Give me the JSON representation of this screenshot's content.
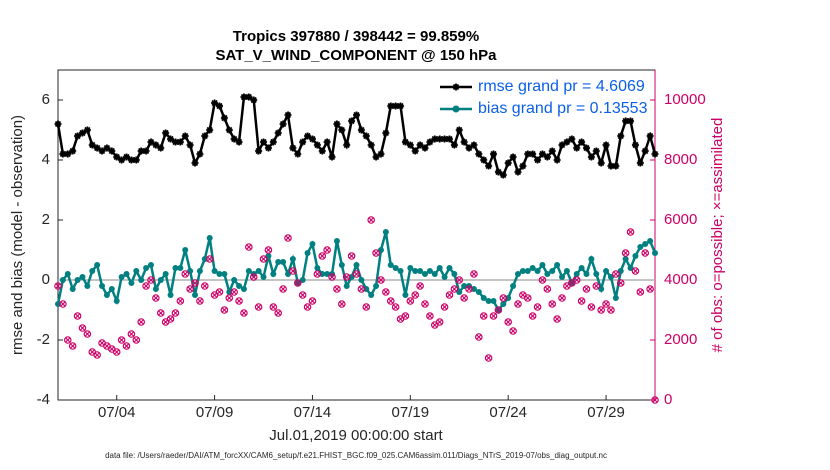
{
  "chart_data": {
    "type": "line",
    "title": [
      "Tropics 397880 / 398442 = 99.859%",
      "SAT_V_WIND_COMPONENT @ 150 hPa"
    ],
    "xlabel": "Jul.01,2019 00:00:00 start",
    "ylabel": "rmse and bias (model - observation)",
    "y2label": "# of obs: o=possible; ×=assimilated",
    "footer": "data file: /Users/raeder/DAI/ATM_forcXX/CAM6_setup/f.e21.FHIST_BGC.f09_025.CAM6assim.011/Diags_NTrS_2019-07/obs_diag_output.nc",
    "legend": "upper right",
    "xlim": [
      0,
      30.5
    ],
    "xticks": [
      {
        "value": 3,
        "label": "07/04"
      },
      {
        "value": 8,
        "label": "07/09"
      },
      {
        "value": 13,
        "label": "07/14"
      },
      {
        "value": 18,
        "label": "07/19"
      },
      {
        "value": 23,
        "label": "07/24"
      },
      {
        "value": 28,
        "label": "07/29"
      }
    ],
    "ylim": [
      -4,
      7
    ],
    "yticks": [
      -4,
      -2,
      0,
      2,
      4,
      6
    ],
    "y2lim": [
      0,
      11000
    ],
    "y2ticks": [
      0,
      2000,
      4000,
      6000,
      8000,
      10000
    ],
    "x": [
      0,
      0.25,
      0.5,
      0.75,
      1,
      1.25,
      1.5,
      1.75,
      2,
      2.25,
      2.5,
      2.75,
      3,
      3.25,
      3.5,
      3.75,
      4,
      4.25,
      4.5,
      4.75,
      5,
      5.25,
      5.5,
      5.75,
      6,
      6.25,
      6.5,
      6.75,
      7,
      7.25,
      7.5,
      7.75,
      8,
      8.25,
      8.5,
      8.75,
      9,
      9.25,
      9.5,
      9.75,
      10,
      10.25,
      10.5,
      10.75,
      11,
      11.25,
      11.5,
      11.75,
      12,
      12.25,
      12.5,
      12.75,
      13,
      13.25,
      13.5,
      13.75,
      14,
      14.25,
      14.5,
      14.75,
      15,
      15.25,
      15.5,
      15.75,
      16,
      16.25,
      16.5,
      16.75,
      17,
      17.25,
      17.5,
      17.75,
      18,
      18.25,
      18.5,
      18.75,
      19,
      19.25,
      19.5,
      19.75,
      20,
      20.25,
      20.5,
      20.75,
      21,
      21.25,
      21.5,
      21.75,
      22,
      22.25,
      22.5,
      22.75,
      23,
      23.25,
      23.5,
      23.75,
      24,
      24.25,
      24.5,
      24.75,
      25,
      25.25,
      25.5,
      25.75,
      26,
      26.25,
      26.5,
      26.75,
      27,
      27.25,
      27.5,
      27.75,
      28,
      28.25,
      28.5,
      28.75,
      29,
      29.25,
      29.5,
      29.75,
      30,
      30.25,
      30.5
    ],
    "series": [
      {
        "name": "rmse grand pr = 4.6069",
        "color": "#000000",
        "marker": "star",
        "values": [
          5.2,
          4.2,
          4.2,
          4.3,
          4.8,
          4.9,
          5.0,
          4.5,
          4.4,
          4.3,
          4.4,
          4.3,
          4.1,
          4.0,
          4.1,
          4.0,
          4.0,
          4.3,
          4.3,
          4.6,
          4.5,
          4.4,
          4.9,
          4.7,
          4.6,
          4.6,
          4.8,
          4.5,
          3.9,
          4.2,
          4.8,
          5.0,
          5.9,
          5.8,
          5.4,
          5.0,
          4.7,
          4.6,
          6.1,
          6.1,
          6.0,
          4.3,
          4.6,
          4.4,
          4.6,
          4.9,
          5.2,
          5.5,
          4.4,
          4.2,
          4.6,
          4.8,
          4.7,
          4.5,
          4.3,
          4.6,
          4.1,
          5.2,
          5.0,
          4.5,
          5.3,
          5.5,
          5.0,
          4.8,
          4.5,
          4.1,
          4.2,
          4.9,
          5.8,
          5.8,
          5.8,
          4.6,
          4.5,
          4.3,
          4.5,
          4.4,
          4.6,
          4.7,
          4.7,
          4.7,
          4.7,
          4.5,
          5.0,
          4.6,
          4.4,
          4.5,
          4.2,
          4.0,
          3.8,
          4.2,
          3.6,
          3.5,
          3.9,
          4.1,
          3.6,
          3.8,
          4.2,
          4.2,
          4.0,
          4.2,
          4.1,
          4.3,
          4.0,
          4.5,
          4.6,
          4.7,
          4.4,
          4.6,
          4.4,
          4.1,
          4.3,
          3.9,
          4.5,
          3.8,
          3.8,
          4.8,
          5.3,
          5.3,
          4.5,
          3.9,
          4.3,
          4.8,
          4.2
        ]
      },
      {
        "name": "bias grand pr = 0.13553",
        "color": "#008080",
        "marker": "circle",
        "values": [
          -0.8,
          0.0,
          0.2,
          -0.3,
          0.0,
          0.1,
          -0.2,
          0.3,
          0.5,
          -0.2,
          -0.5,
          -0.3,
          -0.7,
          0.1,
          0.2,
          -0.1,
          0.3,
          0.0,
          0.4,
          0.5,
          -0.3,
          0.0,
          0.2,
          -0.5,
          0.4,
          0.4,
          1.0,
          0.3,
          -0.5,
          0.3,
          0.7,
          1.4,
          0.3,
          0.2,
          0.2,
          -0.4,
          0.0,
          -0.2,
          -0.3,
          0.3,
          0.2,
          0.3,
          0.1,
          0.8,
          0.2,
          0.6,
          0.6,
          0.2,
          0.7,
          -0.1,
          0.0,
          0.9,
          1.2,
          0.4,
          0.2,
          0.2,
          0.2,
          1.3,
          0.5,
          -0.2,
          0.1,
          0.5,
          0.0,
          -0.3,
          -0.5,
          -0.2,
          1.0,
          1.6,
          0.5,
          0.4,
          0.3,
          -0.5,
          0.4,
          0.3,
          0.3,
          0.2,
          0.3,
          0.2,
          0.4,
          0.1,
          0.4,
          0.2,
          -0.4,
          -0.2,
          -0.2,
          -0.3,
          -0.4,
          -0.6,
          -0.7,
          -0.7,
          -1.0,
          -0.8,
          -0.6,
          -0.2,
          0.2,
          0.3,
          0.3,
          0.4,
          0.3,
          0.5,
          0.2,
          0.3,
          0.5,
          0.1,
          0.3,
          -0.1,
          0.2,
          0.4,
          0.2,
          0.7,
          0.2,
          -0.3,
          0.3,
          0.1,
          -0.6,
          0.3,
          0.7,
          0.4,
          0.8,
          1.1,
          1.2,
          1.3,
          0.9
        ]
      },
      {
        "color": "#cc0066",
        "marker": "obs",
        "axis": "y2",
        "values": [
          3800,
          3200,
          2000,
          1800,
          2800,
          2400,
          2200,
          1600,
          1500,
          1900,
          1800,
          1700,
          1600,
          2000,
          1800,
          2200,
          2000,
          2600,
          3800,
          4000,
          3400,
          2900,
          2600,
          2700,
          2900,
          3300,
          4200,
          3700,
          3900,
          3300,
          3800,
          4700,
          3500,
          3600,
          3000,
          3400,
          3600,
          3300,
          2900,
          5100,
          4100,
          3100,
          4700,
          5000,
          3100,
          2900,
          3700,
          5400,
          4300,
          3900,
          3500,
          3100,
          3300,
          4200,
          4800,
          5000,
          4100,
          3700,
          3200,
          4100,
          4800,
          4200,
          3700,
          3100,
          6000,
          4900,
          4000,
          3600,
          3300,
          3100,
          2700,
          2800,
          3300,
          3500,
          3800,
          3200,
          2800,
          2500,
          2600,
          3100,
          3500,
          3700,
          4000,
          3400,
          3700,
          4200,
          2100,
          2800,
          1400,
          2800,
          3000,
          3400,
          2600,
          2300,
          3200,
          3500,
          3400,
          2800,
          3100,
          4000,
          3700,
          3200,
          2700,
          3400,
          3800,
          3900,
          4000,
          3300,
          3700,
          3100,
          3800,
          3000,
          3200,
          3000,
          4200,
          3900,
          4900,
          5600,
          4300,
          3600,
          4900,
          3700,
          0
        ]
      }
    ]
  }
}
